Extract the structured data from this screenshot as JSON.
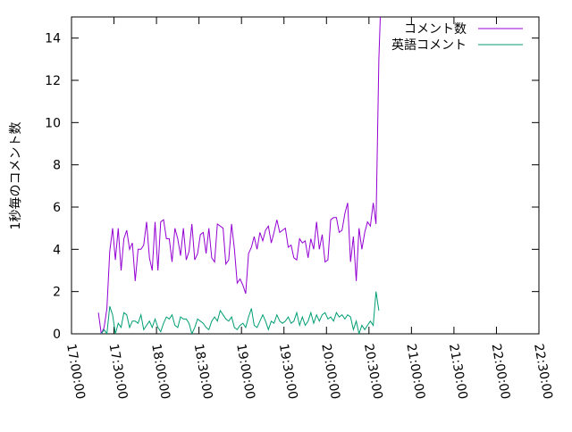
{
  "chart_data": {
    "type": "line",
    "title": "",
    "xlabel": "",
    "ylabel": "1秒毎のコメント数",
    "xlim": [
      "17:00:00",
      "22:30:00"
    ],
    "ylim": [
      0,
      15
    ],
    "x_ticks": [
      "17:00:00",
      "17:30:00",
      "18:00:00",
      "18:30:00",
      "19:00:00",
      "19:30:00",
      "20:00:00",
      "20:30:00",
      "21:00:00",
      "21:30:00",
      "22:00:00",
      "22:30:00"
    ],
    "y_ticks": [
      "0",
      "2",
      "4",
      "6",
      "8",
      "10",
      "12",
      "14"
    ],
    "grid": false,
    "legend_position": "top-right",
    "series": [
      {
        "name": "コメント数",
        "color": "#9400d3",
        "points": [
          [
            "17:19:00",
            1.0
          ],
          [
            "17:21:00",
            0.0
          ],
          [
            "17:23:00",
            0.3
          ],
          [
            "17:25:00",
            1.2
          ],
          [
            "17:27:00",
            3.9
          ],
          [
            "17:29:00",
            5.0
          ],
          [
            "17:31:00",
            3.5
          ],
          [
            "17:33:00",
            5.0
          ],
          [
            "17:35:00",
            3.0
          ],
          [
            "17:37:00",
            4.5
          ],
          [
            "17:39:00",
            4.9
          ],
          [
            "17:41:00",
            4.0
          ],
          [
            "17:43:00",
            4.3
          ],
          [
            "17:45:00",
            2.5
          ],
          [
            "17:47:00",
            4.0
          ],
          [
            "17:49:00",
            4.0
          ],
          [
            "17:51:00",
            4.2
          ],
          [
            "17:53:00",
            5.3
          ],
          [
            "17:55:00",
            3.6
          ],
          [
            "17:57:00",
            3.0
          ],
          [
            "17:59:00",
            5.3
          ],
          [
            "18:01:00",
            3.0
          ],
          [
            "18:03:00",
            5.3
          ],
          [
            "18:05:00",
            5.4
          ],
          [
            "18:07:00",
            4.5
          ],
          [
            "18:09:00",
            4.5
          ],
          [
            "18:11:00",
            3.4
          ],
          [
            "18:13:00",
            5.0
          ],
          [
            "18:15:00",
            4.5
          ],
          [
            "18:17:00",
            3.7
          ],
          [
            "18:19:00",
            5.0
          ],
          [
            "18:21:00",
            3.5
          ],
          [
            "18:23:00",
            3.9
          ],
          [
            "18:25:00",
            5.2
          ],
          [
            "18:27:00",
            3.5
          ],
          [
            "18:29:00",
            3.8
          ],
          [
            "18:31:00",
            4.7
          ],
          [
            "18:33:00",
            4.8
          ],
          [
            "18:35:00",
            3.8
          ],
          [
            "18:37:00",
            5.0
          ],
          [
            "18:39:00",
            3.6
          ],
          [
            "18:41:00",
            3.4
          ],
          [
            "18:43:00",
            5.2
          ],
          [
            "18:45:00",
            5.1
          ],
          [
            "18:47:00",
            5.0
          ],
          [
            "18:49:00",
            3.3
          ],
          [
            "18:51:00",
            3.5
          ],
          [
            "18:53:00",
            5.2
          ],
          [
            "18:55:00",
            4.0
          ],
          [
            "18:57:00",
            2.4
          ],
          [
            "18:59:00",
            2.6
          ],
          [
            "19:01:00",
            2.3
          ],
          [
            "19:03:00",
            1.9
          ],
          [
            "19:05:00",
            3.8
          ],
          [
            "19:07:00",
            4.1
          ],
          [
            "19:09:00",
            4.6
          ],
          [
            "19:11:00",
            4.0
          ],
          [
            "19:13:00",
            4.8
          ],
          [
            "19:15:00",
            4.4
          ],
          [
            "19:17:00",
            4.9
          ],
          [
            "19:19:00",
            5.1
          ],
          [
            "19:21:00",
            4.3
          ],
          [
            "19:23:00",
            4.8
          ],
          [
            "19:25:00",
            5.4
          ],
          [
            "19:27:00",
            4.8
          ],
          [
            "19:29:00",
            4.9
          ],
          [
            "19:31:00",
            5.0
          ],
          [
            "19:33:00",
            4.1
          ],
          [
            "19:35:00",
            4.2
          ],
          [
            "19:37:00",
            3.6
          ],
          [
            "19:39:00",
            3.5
          ],
          [
            "19:41:00",
            4.5
          ],
          [
            "19:43:00",
            4.3
          ],
          [
            "19:45:00",
            4.4
          ],
          [
            "19:47:00",
            3.6
          ],
          [
            "19:49:00",
            4.5
          ],
          [
            "19:51:00",
            4.0
          ],
          [
            "19:53:00",
            5.3
          ],
          [
            "19:55:00",
            4.0
          ],
          [
            "19:57:00",
            4.7
          ],
          [
            "19:59:00",
            3.4
          ],
          [
            "20:01:00",
            3.5
          ],
          [
            "20:03:00",
            5.4
          ],
          [
            "20:05:00",
            5.5
          ],
          [
            "20:07:00",
            5.5
          ],
          [
            "20:09:00",
            4.8
          ],
          [
            "20:11:00",
            4.9
          ],
          [
            "20:13:00",
            5.7
          ],
          [
            "20:15:00",
            6.2
          ],
          [
            "20:17:00",
            3.4
          ],
          [
            "20:19:00",
            4.6
          ],
          [
            "20:21:00",
            2.5
          ],
          [
            "20:23:00",
            5.0
          ],
          [
            "20:25:00",
            4.0
          ],
          [
            "20:27:00",
            4.8
          ],
          [
            "20:29:00",
            5.3
          ],
          [
            "20:31:00",
            5.1
          ],
          [
            "20:33:00",
            6.2
          ],
          [
            "20:35:00",
            5.2
          ],
          [
            "20:37:00",
            13.0
          ],
          [
            "20:38:00",
            15.0
          ]
        ]
      },
      {
        "name": "英語コメント",
        "color": "#009e73",
        "points": [
          [
            "17:21:00",
            0.0
          ],
          [
            "17:23:00",
            0.2
          ],
          [
            "17:25:00",
            0.0
          ],
          [
            "17:27:00",
            1.3
          ],
          [
            "17:29:00",
            0.9
          ],
          [
            "17:31:00",
            0.0
          ],
          [
            "17:33:00",
            0.5
          ],
          [
            "17:35:00",
            0.3
          ],
          [
            "17:37:00",
            1.0
          ],
          [
            "17:39:00",
            0.9
          ],
          [
            "17:41:00",
            0.3
          ],
          [
            "17:43:00",
            0.6
          ],
          [
            "17:45:00",
            0.6
          ],
          [
            "17:47:00",
            0.5
          ],
          [
            "17:49:00",
            0.9
          ],
          [
            "17:51:00",
            0.2
          ],
          [
            "17:53:00",
            0.4
          ],
          [
            "17:55:00",
            0.6
          ],
          [
            "17:57:00",
            0.3
          ],
          [
            "17:59:00",
            0.7
          ],
          [
            "18:01:00",
            0.3
          ],
          [
            "18:03:00",
            0.1
          ],
          [
            "18:05:00",
            0.5
          ],
          [
            "18:07:00",
            0.8
          ],
          [
            "18:09:00",
            0.7
          ],
          [
            "18:11:00",
            0.9
          ],
          [
            "18:13:00",
            0.4
          ],
          [
            "18:15:00",
            0.3
          ],
          [
            "18:17:00",
            0.8
          ],
          [
            "18:19:00",
            0.7
          ],
          [
            "18:21:00",
            0.7
          ],
          [
            "18:23:00",
            0.5
          ],
          [
            "18:25:00",
            0.0
          ],
          [
            "18:27:00",
            0.3
          ],
          [
            "18:29:00",
            0.7
          ],
          [
            "18:31:00",
            0.6
          ],
          [
            "18:33:00",
            0.5
          ],
          [
            "18:35:00",
            0.3
          ],
          [
            "18:37:00",
            0.2
          ],
          [
            "18:39:00",
            0.6
          ],
          [
            "18:41:00",
            0.8
          ],
          [
            "18:43:00",
            0.6
          ],
          [
            "18:45:00",
            1.1
          ],
          [
            "18:47:00",
            0.9
          ],
          [
            "18:49:00",
            0.7
          ],
          [
            "18:51:00",
            0.6
          ],
          [
            "18:53:00",
            0.8
          ],
          [
            "18:55:00",
            0.3
          ],
          [
            "18:57:00",
            0.2
          ],
          [
            "18:59:00",
            0.4
          ],
          [
            "19:01:00",
            0.5
          ],
          [
            "19:03:00",
            0.3
          ],
          [
            "19:05:00",
            0.8
          ],
          [
            "19:07:00",
            1.2
          ],
          [
            "19:09:00",
            0.4
          ],
          [
            "19:11:00",
            0.3
          ],
          [
            "19:13:00",
            0.6
          ],
          [
            "19:15:00",
            0.9
          ],
          [
            "19:17:00",
            0.6
          ],
          [
            "19:19:00",
            0.2
          ],
          [
            "19:21:00",
            0.6
          ],
          [
            "19:23:00",
            0.5
          ],
          [
            "19:25:00",
            0.9
          ],
          [
            "19:27:00",
            0.6
          ],
          [
            "19:29:00",
            0.5
          ],
          [
            "19:31:00",
            0.6
          ],
          [
            "19:33:00",
            0.8
          ],
          [
            "19:35:00",
            0.5
          ],
          [
            "19:37:00",
            0.6
          ],
          [
            "19:39:00",
            1.0
          ],
          [
            "19:41:00",
            0.4
          ],
          [
            "19:43:00",
            0.8
          ],
          [
            "19:45:00",
            0.4
          ],
          [
            "19:47:00",
            0.6
          ],
          [
            "19:49:00",
            1.0
          ],
          [
            "19:51:00",
            0.5
          ],
          [
            "19:53:00",
            0.9
          ],
          [
            "19:55:00",
            0.6
          ],
          [
            "19:57:00",
            0.9
          ],
          [
            "19:59:00",
            1.0
          ],
          [
            "20:01:00",
            0.7
          ],
          [
            "20:03:00",
            0.8
          ],
          [
            "20:05:00",
            0.6
          ],
          [
            "20:07:00",
            1.0
          ],
          [
            "20:09:00",
            0.8
          ],
          [
            "20:11:00",
            0.9
          ],
          [
            "20:13:00",
            0.7
          ],
          [
            "20:15:00",
            0.9
          ],
          [
            "20:17:00",
            0.8
          ],
          [
            "20:19:00",
            0.2
          ],
          [
            "20:21:00",
            0.6
          ],
          [
            "20:23:00",
            0.0
          ],
          [
            "20:25:00",
            0.4
          ],
          [
            "20:27:00",
            0.2
          ],
          [
            "20:29:00",
            0.4
          ],
          [
            "20:31:00",
            0.6
          ],
          [
            "20:33:00",
            0.4
          ],
          [
            "20:35:00",
            2.0
          ],
          [
            "20:37:00",
            1.1
          ]
        ]
      }
    ]
  }
}
